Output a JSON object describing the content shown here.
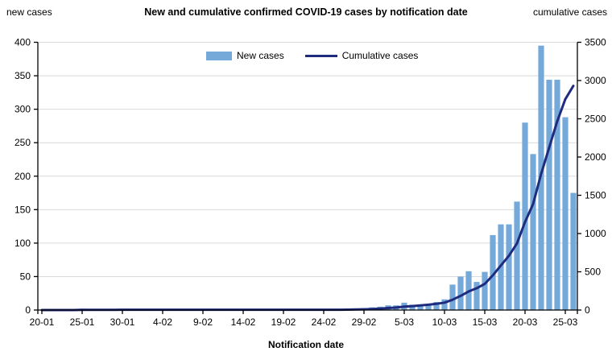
{
  "header": {
    "title": "New and cumulative confirmed COVID-19 cases by notification date",
    "left_axis_title": "new cases",
    "right_axis_title": "cumulative cases"
  },
  "xaxis_title": "Notification date",
  "colors": {
    "bar": "#74A9D9",
    "line": "#1F2B7D",
    "grid": "#D9D9D9",
    "axis": "#000000"
  },
  "chart_data": {
    "type": "bar",
    "subtype": "bar-with-cumulative-line",
    "title": "New and cumulative confirmed COVID-19 cases by notification date",
    "xlabel": "Notification date",
    "ylabel_left": "new cases",
    "ylabel_right": "cumulative cases",
    "grid": true,
    "legend_position": "top-center",
    "left_axis": {
      "min": 0,
      "max": 400,
      "step": 50
    },
    "right_axis": {
      "min": 0,
      "max": 3500,
      "step": 500
    },
    "x_tick_indices": [
      0,
      5,
      10,
      15,
      20,
      25,
      30,
      35,
      40,
      45,
      50,
      55,
      60,
      65
    ],
    "x_tick_labels": [
      "20-01",
      "25-01",
      "30-01",
      "4-02",
      "9-02",
      "14-02",
      "19-02",
      "24-02",
      "29-02",
      "5-03",
      "10-03",
      "15-03",
      "20-03",
      "25-03"
    ],
    "categories": [
      "20-01",
      "21-01",
      "22-01",
      "23-01",
      "24-01",
      "25-01",
      "26-01",
      "27-01",
      "28-01",
      "29-01",
      "30-01",
      "31-01",
      "1-02",
      "2-02",
      "3-02",
      "4-02",
      "5-02",
      "6-02",
      "7-02",
      "8-02",
      "9-02",
      "10-02",
      "11-02",
      "12-02",
      "13-02",
      "14-02",
      "15-02",
      "16-02",
      "17-02",
      "18-02",
      "19-02",
      "20-02",
      "21-02",
      "22-02",
      "23-02",
      "24-02",
      "25-02",
      "26-02",
      "27-02",
      "28-02",
      "29-02",
      "1-03",
      "2-03",
      "3-03",
      "4-03",
      "5-03",
      "6-03",
      "7-03",
      "8-03",
      "9-03",
      "10-03",
      "11-03",
      "12-03",
      "13-03",
      "14-03",
      "15-03",
      "16-03",
      "17-03",
      "18-03",
      "19-03",
      "20-03",
      "21-03",
      "22-03",
      "23-03",
      "24-03",
      "25-03",
      "26-03"
    ],
    "series": [
      {
        "name": "New cases",
        "type": "bar",
        "axis": "left",
        "values": [
          0,
          0,
          0,
          0,
          0,
          2,
          0,
          0,
          0,
          0,
          2,
          0,
          0,
          0,
          0,
          0,
          0,
          0,
          0,
          0,
          0,
          0,
          0,
          0,
          0,
          0,
          0,
          0,
          0,
          0,
          0,
          0,
          0,
          0,
          0,
          0,
          0,
          0,
          1,
          2,
          3,
          4,
          5,
          7,
          7,
          11,
          8,
          8,
          9,
          12,
          16,
          38,
          50,
          58,
          42,
          57,
          112,
          128,
          128,
          162,
          280,
          233,
          395,
          344,
          344,
          288,
          175
        ]
      },
      {
        "name": "Cumulative cases",
        "type": "line",
        "axis": "right",
        "values": [
          0,
          0,
          0,
          0,
          0,
          2,
          2,
          2,
          2,
          2,
          4,
          4,
          4,
          4,
          4,
          4,
          4,
          4,
          4,
          4,
          4,
          4,
          4,
          4,
          4,
          4,
          4,
          4,
          4,
          4,
          4,
          4,
          4,
          4,
          4,
          4,
          4,
          4,
          5,
          7,
          10,
          14,
          19,
          26,
          33,
          44,
          52,
          60,
          69,
          81,
          97,
          135,
          185,
          243,
          285,
          342,
          454,
          582,
          710,
          872,
          1152,
          1385,
          1780,
          2124,
          2468,
          2756,
          2931
        ]
      }
    ]
  }
}
